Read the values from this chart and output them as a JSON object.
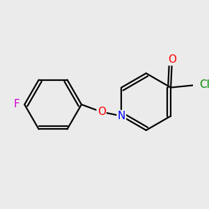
{
  "background_color": "#ebebeb",
  "bond_color": "#000000",
  "atom_colors": {
    "F": "#cc00cc",
    "O": "#ff0000",
    "N": "#0000ff",
    "Cl": "#008800"
  },
  "line_width": 1.6,
  "figsize": [
    3.0,
    3.0
  ],
  "dpi": 100
}
